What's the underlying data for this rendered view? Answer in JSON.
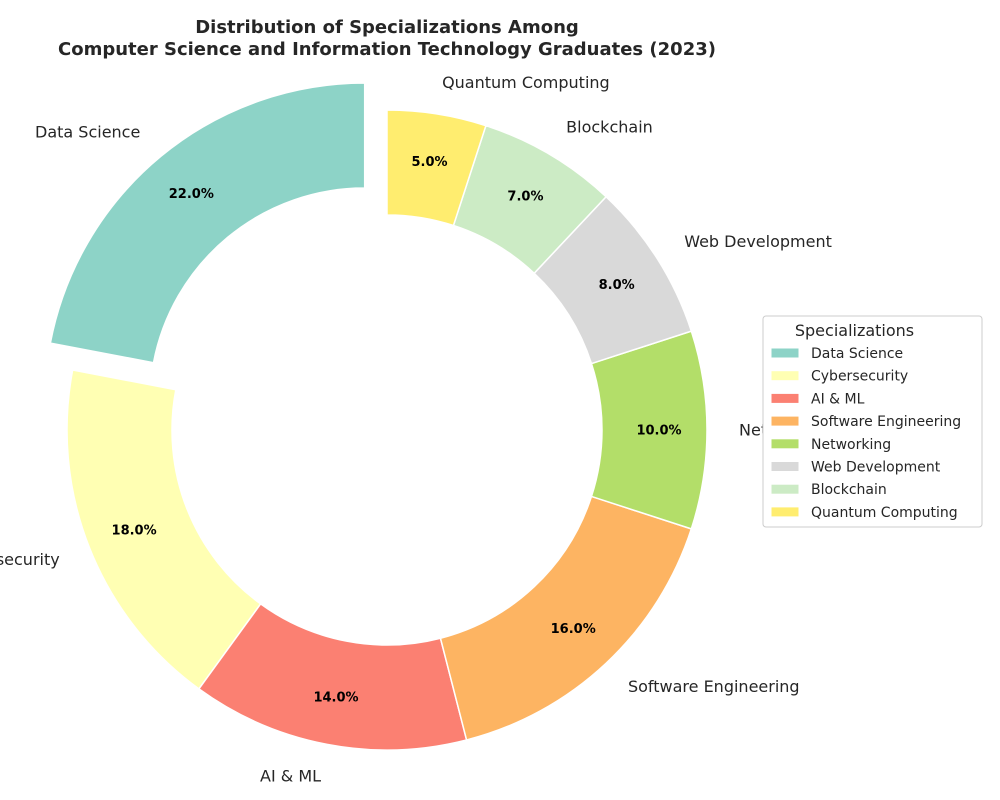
{
  "chart_data": {
    "type": "pie",
    "title": "Distribution of Specializations Among\nComputer Science and Information Technology Graduates (2023)",
    "categories": [
      "Data Science",
      "Cybersecurity",
      "AI & ML",
      "Software Engineering",
      "Networking",
      "Web Development",
      "Blockchain",
      "Quantum Computing"
    ],
    "values": [
      22,
      18,
      14,
      16,
      10,
      8,
      7,
      5
    ],
    "percent_labels": [
      "22.0%",
      "18.0%",
      "14.0%",
      "16.0%",
      "10.0%",
      "8.0%",
      "7.0%",
      "5.0%"
    ],
    "colors": [
      "#8dd3c7",
      "#ffffb3",
      "#fb8072",
      "#fdb462",
      "#b3de69",
      "#d9d9d9",
      "#ccebc5",
      "#ffed6f"
    ],
    "exploded": [
      "Data Science"
    ],
    "donut": true,
    "start_angle_deg": 90,
    "direction": "counterclockwise",
    "legend": {
      "title": "Specializations",
      "placement": "center-right"
    }
  }
}
